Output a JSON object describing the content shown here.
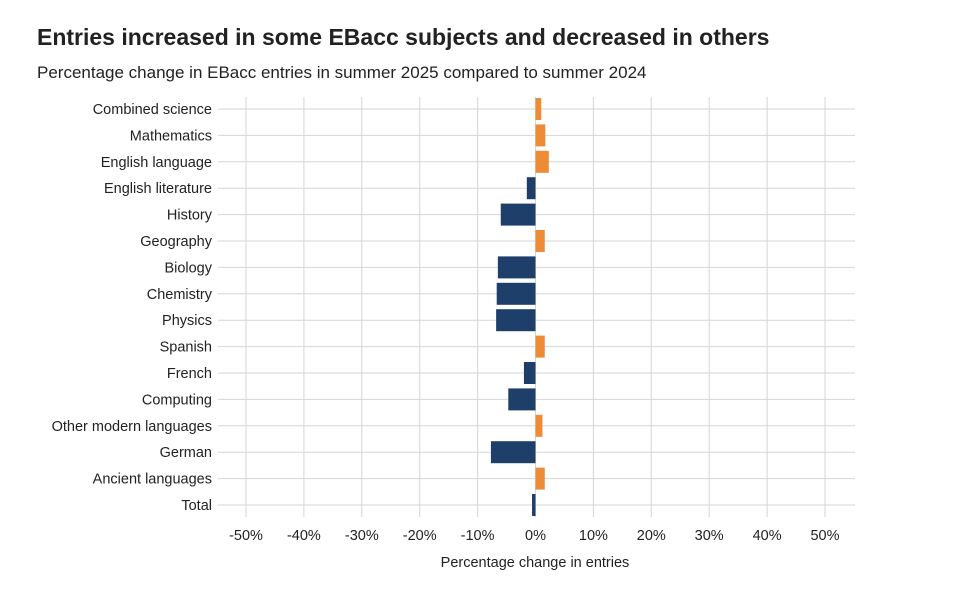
{
  "title": "Entries increased in some EBacc subjects and decreased in others",
  "subtitle": "Percentage change in EBacc entries in summer 2025 compared to summer 2024",
  "colors": {
    "increase": "#ED8B37",
    "decrease": "#1F3F6B",
    "grid": "#D6D6D6"
  },
  "chart_data": {
    "type": "bar",
    "orientation": "horizontal",
    "xlabel": "Percentage change in entries",
    "xlim": [
      -50,
      50
    ],
    "grid": true,
    "xticks": [
      "-50%",
      "-40%",
      "-30%",
      "-20%",
      "-10%",
      "0%",
      "10%",
      "20%",
      "30%",
      "40%",
      "50%"
    ],
    "categories": [
      "Combined science",
      "Mathematics",
      "English language",
      "English literature",
      "History",
      "Geography",
      "Biology",
      "Chemistry",
      "Physics",
      "Spanish",
      "French",
      "Computing",
      "Other modern languages",
      "German",
      "Ancient languages",
      "Total"
    ],
    "values": [
      1.0,
      1.7,
      2.3,
      -1.5,
      -6.0,
      1.6,
      -6.5,
      -6.7,
      -6.8,
      1.6,
      -2.0,
      -4.7,
      1.2,
      -7.7,
      1.6,
      -0.6
    ]
  }
}
